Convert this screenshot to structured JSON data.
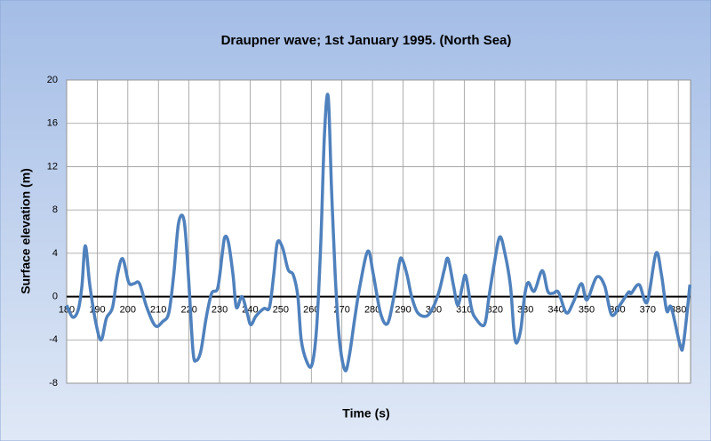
{
  "chart_data": {
    "type": "line",
    "title": "Draupner wave; 1st January 1995. (North Sea)",
    "x_label": "Time (s)",
    "y_label": "Surface elevation (m)",
    "x": [
      180,
      182,
      183.8,
      185,
      186.1,
      187.6,
      189.6,
      191.3,
      193,
      195,
      196.6,
      198.3,
      200.3,
      202,
      203.8,
      206.2,
      209,
      211.4,
      213.4,
      215,
      216.6,
      218.4,
      219.8,
      221.3,
      222.4,
      223.9,
      225.6,
      227.4,
      229.4,
      230.9,
      231.7,
      232.9,
      234.4,
      235.5,
      237.3,
      239,
      240.2,
      241.9,
      244.5,
      246.3,
      247.7,
      248.9,
      250.6,
      252.4,
      254.1,
      255.6,
      256.7,
      258.5,
      260.2,
      261.7,
      263.1,
      264.3,
      265.5,
      266.6,
      267.8,
      269.2,
      271,
      272.4,
      274.2,
      275.9,
      278.5,
      280.3,
      282.6,
      284.9,
      287,
      288.7,
      289.6,
      291.3,
      292.8,
      294.8,
      297.7,
      299.8,
      301.8,
      303.5,
      304.7,
      306.5,
      307.9,
      309.4,
      310.5,
      312.3,
      313.7,
      316.6,
      318.1,
      319.8,
      321.6,
      323.3,
      325.1,
      326.2,
      327.1,
      328.5,
      329.7,
      330.9,
      332.9,
      335.5,
      337.3,
      339,
      340.8,
      343.4,
      345.7,
      348.3,
      350.1,
      353.3,
      355.9,
      358.2,
      361.1,
      363.7,
      364.6,
      367.2,
      369.8,
      372.7,
      374.5,
      376.2,
      377.7,
      380.6,
      381.7,
      383.8
    ],
    "series": [
      {
        "name": "Surface elevation",
        "color": "#4f81bd",
        "values": [
          -0.8,
          -1.9,
          -1.2,
          1,
          4.7,
          1,
          -2.5,
          -4,
          -2,
          -1,
          2,
          3.5,
          1.3,
          1.2,
          1.2,
          -1,
          -2.7,
          -2.3,
          -1.5,
          2,
          6.8,
          7,
          2,
          -5,
          -5.9,
          -5,
          -2,
          0.3,
          0.8,
          4,
          5.5,
          5,
          2,
          -1,
          0,
          -1.5,
          -2.6,
          -1.8,
          -1.1,
          -1,
          2,
          5,
          4.5,
          2.5,
          2,
          0,
          -4,
          -6,
          -6.3,
          -3,
          5,
          15,
          18.5,
          10,
          2,
          -4,
          -6.8,
          -5.5,
          -2,
          1,
          4.2,
          2,
          -1.5,
          -2.5,
          0,
          3,
          3.5,
          2,
          0,
          -1.5,
          -1.8,
          -1,
          0.5,
          2.5,
          3.5,
          1,
          -0.8,
          1,
          1.9,
          -1,
          -2,
          -2.6,
          0,
          3,
          5.5,
          4,
          1,
          -3,
          -4.3,
          -3,
          0,
          1.3,
          0.5,
          2.4,
          0.5,
          0.3,
          0.4,
          -1.5,
          -0.5,
          1.2,
          -0.3,
          1.8,
          1,
          -1.7,
          -0.7,
          0.4,
          0.3,
          1.1,
          -0.5,
          4,
          2,
          -1.3,
          -1,
          -4.5,
          -4.3,
          1.1
        ]
      }
    ],
    "xlim": [
      180,
      384
    ],
    "xticks": [
      180,
      190,
      200,
      210,
      220,
      230,
      240,
      250,
      260,
      270,
      280,
      290,
      300,
      310,
      320,
      330,
      340,
      350,
      360,
      370,
      380
    ],
    "ylim": [
      -8,
      20
    ],
    "yticks": [
      -8,
      -4,
      0,
      4,
      8,
      12,
      16,
      20
    ],
    "grid": true
  }
}
